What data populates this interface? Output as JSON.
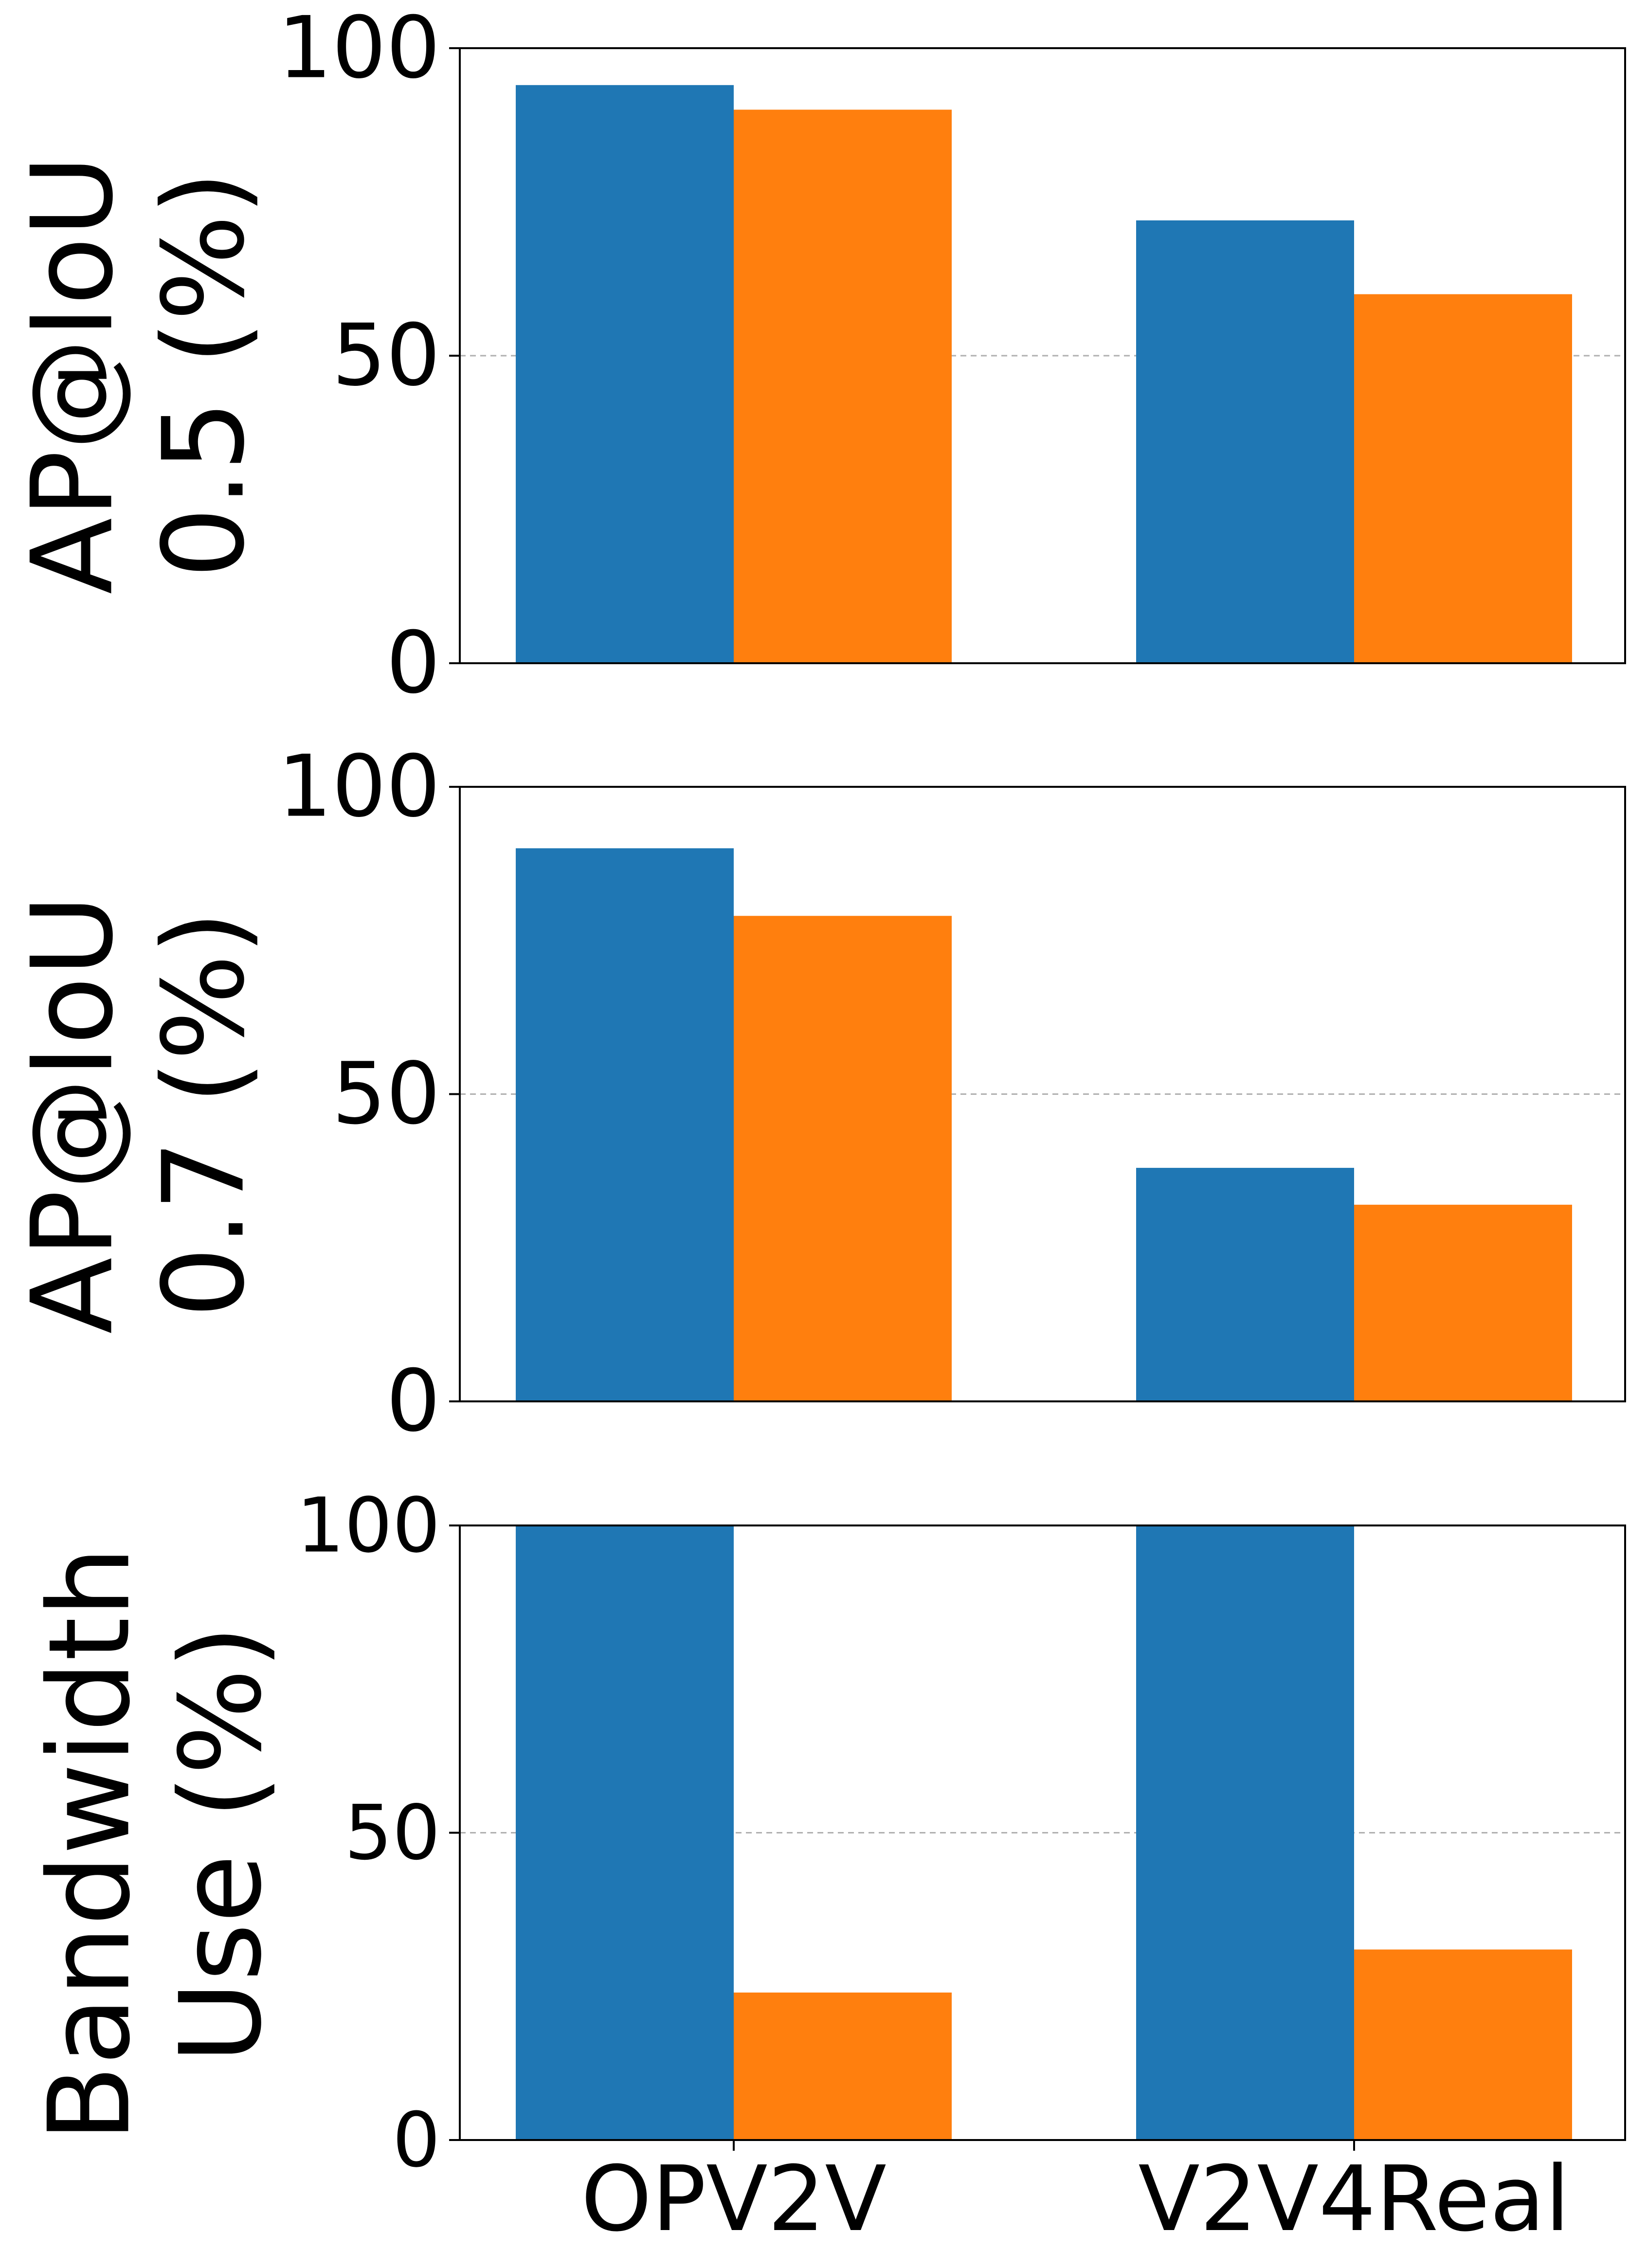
{
  "chart_data": [
    {
      "type": "bar",
      "categories": [
        "OPV2V",
        "V2V4Real"
      ],
      "ylabel": [
        "AP@IoU",
        "0.5 (%)"
      ],
      "ylim": [
        0,
        100
      ],
      "yticks": [
        "0",
        "50",
        "100"
      ],
      "grid": "horizontal dashed at 50",
      "legend": "none",
      "series": [
        {
          "color": "#1f77b4",
          "values": [
            94,
            72
          ]
        },
        {
          "color": "#ff7f0e",
          "values": [
            90,
            60
          ]
        }
      ]
    },
    {
      "type": "bar",
      "categories": [
        "OPV2V",
        "V2V4Real"
      ],
      "ylabel": [
        "AP@IoU",
        "0.7 (%)"
      ],
      "ylim": [
        0,
        100
      ],
      "yticks": [
        "0",
        "50",
        "100"
      ],
      "grid": "horizontal dashed at 50",
      "legend": "none",
      "series": [
        {
          "color": "#1f77b4",
          "values": [
            90,
            38
          ]
        },
        {
          "color": "#ff7f0e",
          "values": [
            79,
            32
          ]
        }
      ]
    },
    {
      "type": "bar",
      "categories": [
        "OPV2V",
        "V2V4Real"
      ],
      "ylabel": [
        "Bandwidth",
        "Use (%)"
      ],
      "ylim": [
        0,
        100
      ],
      "yticks": [
        "0",
        "50",
        "100"
      ],
      "grid": "horizontal dashed at 50",
      "legend": "none",
      "series": [
        {
          "color": "#1f77b4",
          "values": [
            100,
            100
          ]
        },
        {
          "color": "#ff7f0e",
          "values": [
            24,
            31
          ]
        }
      ]
    }
  ]
}
